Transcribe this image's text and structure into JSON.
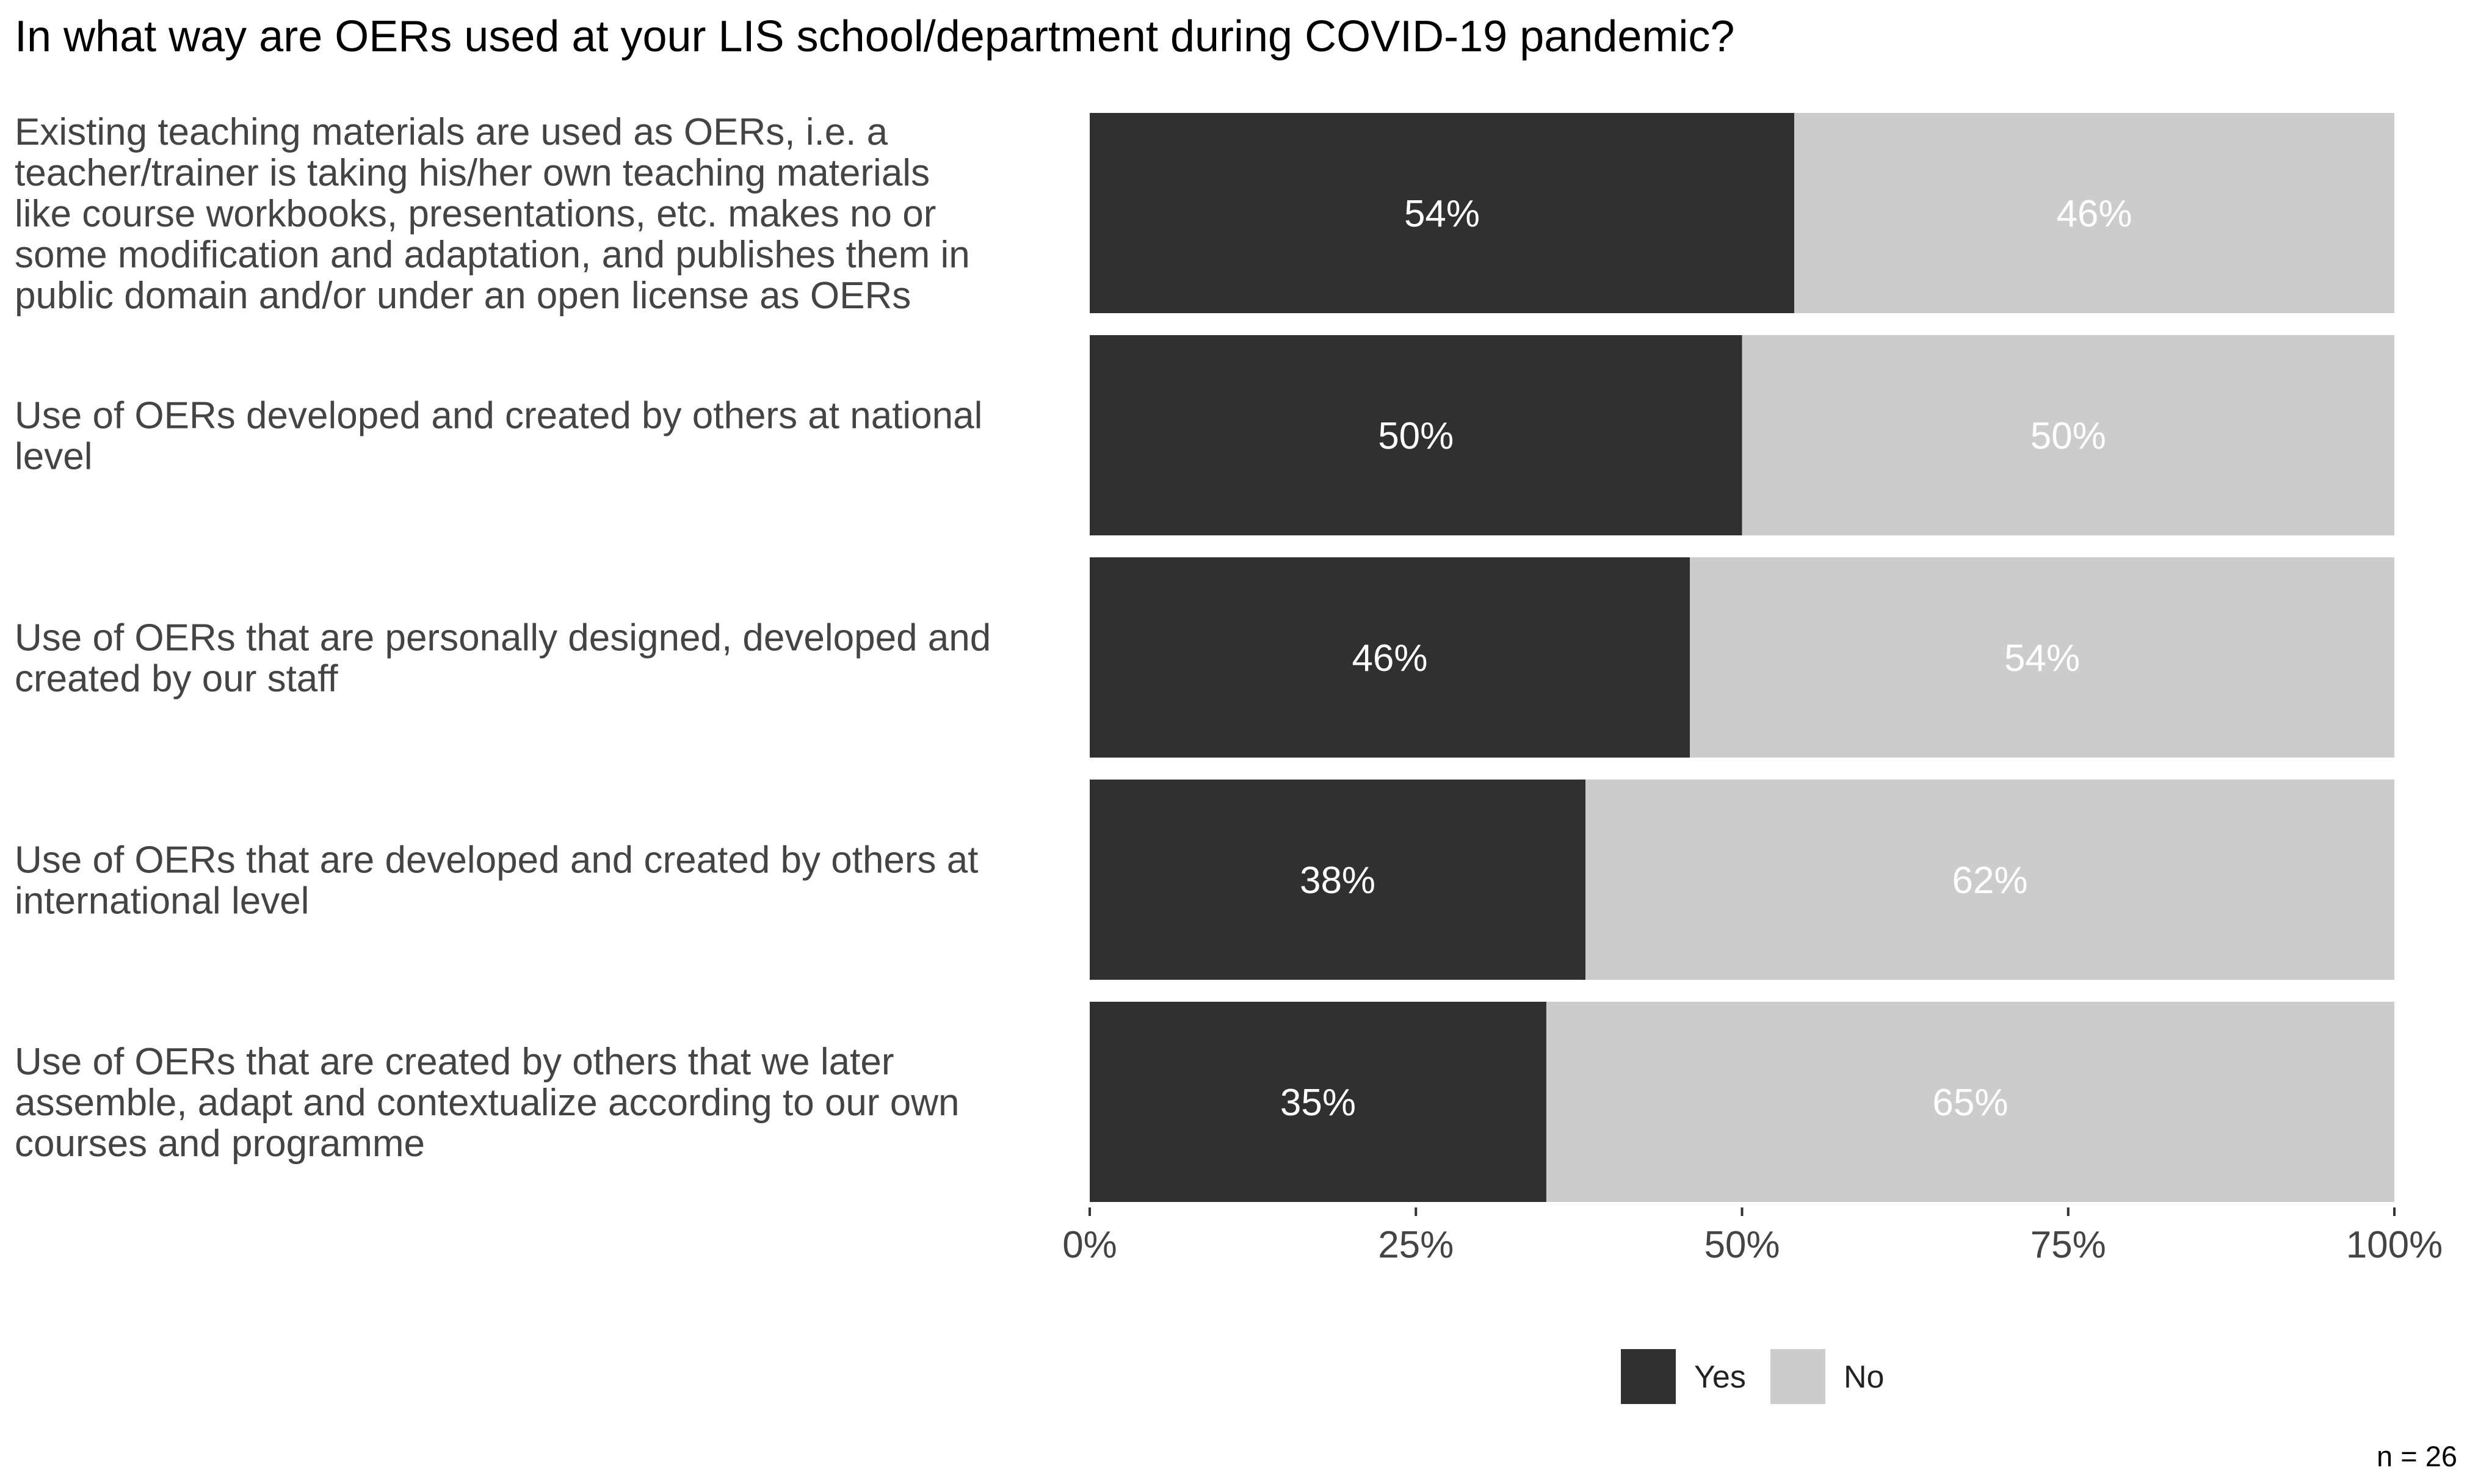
{
  "chart_data": {
    "type": "bar",
    "orientation": "horizontal",
    "stacked": true,
    "title": "In what way are OERs used at your LIS school/department during COVID-19 pandemic?",
    "categories": [
      [
        "Existing teaching materials are used as OERs, i.e. a",
        "teacher/trainer is taking his/her own teaching materials",
        "like course workbooks, presentations, etc. makes no or",
        "some modification and adaptation, and publishes them in",
        "public domain and/or under an open license as OERs"
      ],
      [
        "Use of OERs developed and created by others at national",
        "level"
      ],
      [
        "Use of OERs that are personally designed, developed and",
        "created by our staff"
      ],
      [
        "Use of OERs that are developed and created by others at",
        "international level"
      ],
      [
        "Use of OERs that are created by others that we later",
        "assemble, adapt and contextualize according to our own",
        "courses and programme"
      ]
    ],
    "series": [
      {
        "name": "Yes",
        "color": "#303030",
        "label_color": "#ffffff",
        "values": [
          54,
          50,
          46,
          38,
          35
        ]
      },
      {
        "name": "No",
        "color": "#cccccc",
        "label_color": "#ffffff",
        "values": [
          46,
          50,
          54,
          62,
          65
        ]
      }
    ],
    "bar_labels": [
      [
        "54%",
        "46%"
      ],
      [
        "50%",
        "50%"
      ],
      [
        "46%",
        "54%"
      ],
      [
        "38%",
        "62%"
      ],
      [
        "35%",
        "65%"
      ]
    ],
    "xlim": [
      0,
      100
    ],
    "xticks": [
      0,
      25,
      50,
      75,
      100
    ],
    "xtick_labels": [
      "0%",
      "25%",
      "50%",
      "75%",
      "100%"
    ],
    "legend_position": "bottom",
    "grid": false,
    "caption": "n = 26"
  }
}
